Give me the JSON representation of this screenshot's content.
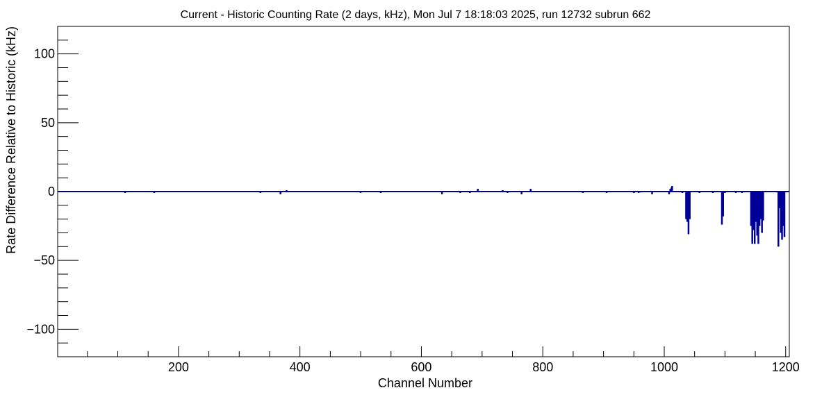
{
  "chart_data": {
    "type": "line",
    "title": "Current - Historic Counting Rate (2 days, kHz), Mon Jul  7 18:18:03 2025, run 12732 subrun 662",
    "xlabel": "Channel Number",
    "ylabel": "Rate Difference Relative to Historic (kHz)",
    "xlim": [
      1,
      1206
    ],
    "ylim": [
      -120,
      120
    ],
    "x_ticks": [
      200,
      400,
      600,
      800,
      1000,
      1200
    ],
    "y_ticks": [
      -100,
      -50,
      0,
      50,
      100
    ],
    "x_tick_labels": [
      "200",
      "400",
      "600",
      "800",
      "1000",
      "1200"
    ],
    "y_tick_labels": [
      "−100",
      "−50",
      "0",
      "50",
      "100"
    ],
    "grid": false,
    "legend": "none",
    "series_color": "#000099",
    "baseline": 0,
    "series": [
      {
        "x": [
          112,
          160,
          335,
          368,
          378,
          500,
          533,
          634,
          664,
          680,
          693,
          734,
          742,
          765,
          780,
          866,
          905,
          950,
          958,
          980,
          1008,
          1010,
          1012,
          1013,
          1030,
          1036,
          1038,
          1040,
          1042,
          1058,
          1080,
          1095,
          1097,
          1100,
          1118,
          1128,
          1143,
          1145,
          1147,
          1149,
          1151,
          1153,
          1155,
          1157,
          1159,
          1161,
          1163,
          1188,
          1190,
          1192,
          1194,
          1196,
          1198
        ],
        "values": [
          -1,
          -1,
          -1,
          -2,
          1,
          -1,
          -1,
          -2,
          -1,
          -1,
          2,
          1,
          -1,
          -2,
          2,
          -1,
          -1,
          -1,
          -1,
          -2,
          -2,
          2,
          3,
          4,
          -1,
          -20,
          -22,
          -31,
          -20,
          -1,
          -1,
          -24,
          -18,
          -1,
          -1,
          -1,
          -25,
          -38,
          -28,
          -38,
          -22,
          -32,
          -38,
          -25,
          -20,
          -30,
          -21,
          -40,
          -12,
          -30,
          -35,
          -25,
          -33
        ]
      }
    ]
  }
}
